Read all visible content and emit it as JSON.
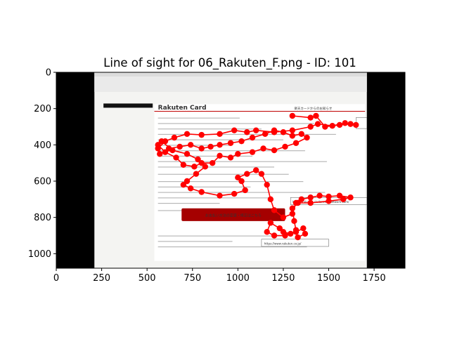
{
  "chart_data": {
    "type": "scatter",
    "title": "Line of sight for 06_Rakuten_F.png - ID: 101",
    "xlabel": "",
    "ylabel": "",
    "xlim": [
      0,
      1920
    ],
    "ylim": [
      1080,
      0
    ],
    "x_ticks": [
      0,
      250,
      500,
      750,
      1000,
      1250,
      1500,
      1750
    ],
    "y_ticks": [
      0,
      200,
      400,
      600,
      800,
      1000
    ],
    "grid": false,
    "background_image": {
      "extent_x": [
        0,
        1920
      ],
      "extent_y": [
        0,
        1080
      ],
      "screenshot_x": [
        210,
        1710
      ],
      "logo_text": "Rakuten Card",
      "heading_text": "楽天カードからのお知らせ",
      "button_text": "お支払い方法の変更・修正はこちら",
      "link_1": "https://rakuten.civilsevenenetwork.com/",
      "link_2": "https://www.rakuten.co.jp/"
    },
    "series": [
      {
        "color": "#ff0000",
        "points": [
          [
            1300,
            240
          ],
          [
            1400,
            250
          ],
          [
            1430,
            240
          ],
          [
            1480,
            300
          ],
          [
            1560,
            290
          ],
          [
            1620,
            285
          ],
          [
            1650,
            290
          ],
          [
            1590,
            280
          ],
          [
            1520,
            295
          ],
          [
            1440,
            285
          ],
          [
            1400,
            300
          ],
          [
            1300,
            320
          ],
          [
            1200,
            330
          ],
          [
            1100,
            320
          ],
          [
            1050,
            330
          ],
          [
            980,
            320
          ],
          [
            900,
            340
          ],
          [
            800,
            345
          ],
          [
            720,
            340
          ],
          [
            650,
            360
          ],
          [
            600,
            380
          ],
          [
            560,
            420
          ],
          [
            570,
            450
          ],
          [
            620,
            420
          ],
          [
            680,
            410
          ],
          [
            740,
            400
          ],
          [
            800,
            420
          ],
          [
            850,
            410
          ],
          [
            900,
            400
          ],
          [
            960,
            390
          ],
          [
            1020,
            380
          ],
          [
            1080,
            360
          ],
          [
            1150,
            340
          ],
          [
            1200,
            320
          ],
          [
            1250,
            330
          ],
          [
            1300,
            350
          ],
          [
            1350,
            340
          ],
          [
            1380,
            360
          ],
          [
            1320,
            390
          ],
          [
            1260,
            410
          ],
          [
            1200,
            430
          ],
          [
            1140,
            420
          ],
          [
            1080,
            440
          ],
          [
            1000,
            450
          ],
          [
            960,
            470
          ],
          [
            900,
            460
          ],
          [
            860,
            500
          ],
          [
            800,
            500
          ],
          [
            760,
            520
          ],
          [
            700,
            510
          ],
          [
            660,
            470
          ],
          [
            600,
            440
          ],
          [
            560,
            400
          ],
          [
            580,
            380
          ],
          [
            640,
            430
          ],
          [
            720,
            450
          ],
          [
            780,
            480
          ],
          [
            820,
            520
          ],
          [
            770,
            560
          ],
          [
            720,
            600
          ],
          [
            700,
            620
          ],
          [
            740,
            640
          ],
          [
            800,
            660
          ],
          [
            900,
            680
          ],
          [
            980,
            670
          ],
          [
            1040,
            650
          ],
          [
            1020,
            600
          ],
          [
            1000,
            580
          ],
          [
            1050,
            560
          ],
          [
            1100,
            540
          ],
          [
            1130,
            560
          ],
          [
            1160,
            620
          ],
          [
            1180,
            700
          ],
          [
            1200,
            760
          ],
          [
            1250,
            800
          ],
          [
            1300,
            780
          ],
          [
            1320,
            720
          ],
          [
            1350,
            700
          ],
          [
            1400,
            690
          ],
          [
            1450,
            680
          ],
          [
            1500,
            685
          ],
          [
            1560,
            680
          ],
          [
            1620,
            690
          ],
          [
            1580,
            700
          ],
          [
            1500,
            710
          ],
          [
            1400,
            720
          ],
          [
            1330,
            720
          ],
          [
            1300,
            750
          ],
          [
            1310,
            820
          ],
          [
            1320,
            870
          ],
          [
            1290,
            890
          ],
          [
            1250,
            880
          ],
          [
            1230,
            860
          ],
          [
            1180,
            830
          ],
          [
            1160,
            880
          ],
          [
            1200,
            900
          ],
          [
            1260,
            900
          ],
          [
            1320,
            880
          ],
          [
            1360,
            860
          ],
          [
            1370,
            890
          ],
          [
            1330,
            910
          ]
        ]
      }
    ]
  }
}
